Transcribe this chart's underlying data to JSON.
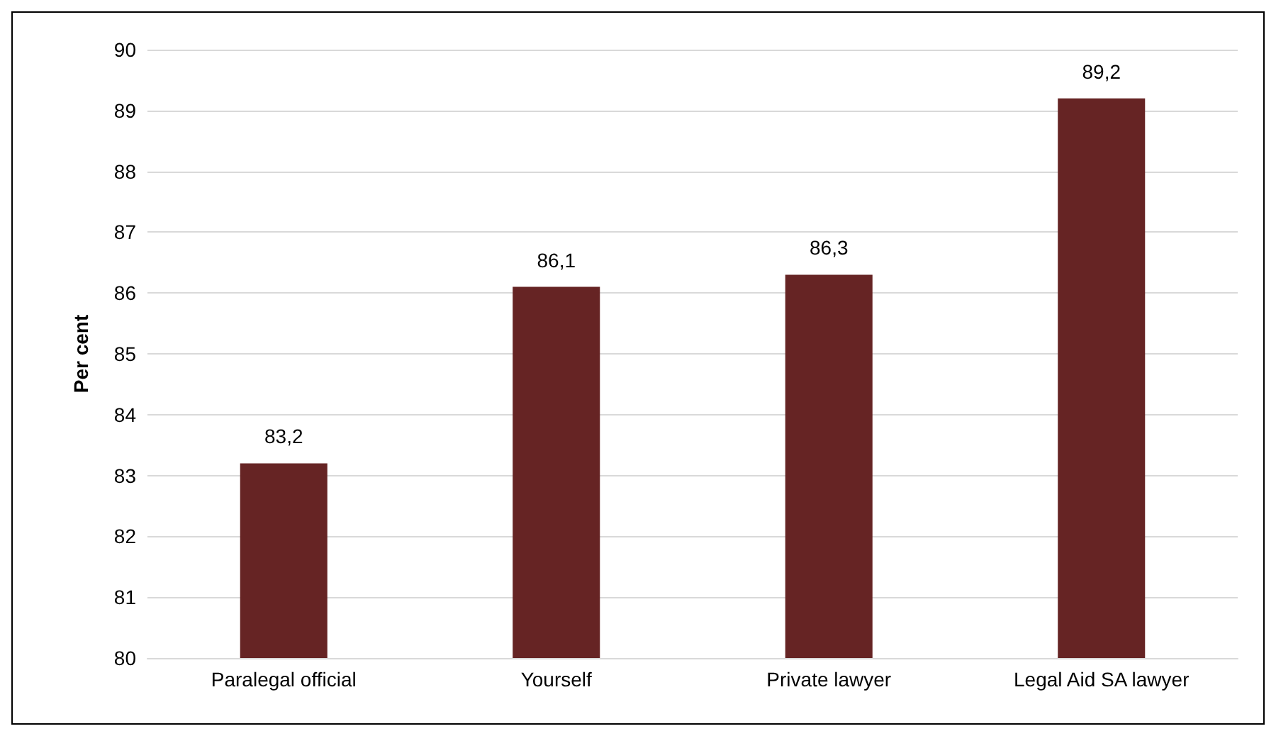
{
  "chart_data": {
    "type": "bar",
    "ylabel": "Per cent",
    "categories": [
      "Paralegal official",
      "Yourself",
      "Private lawyer",
      "Legal Aid SA lawyer"
    ],
    "values": [
      83.2,
      86.1,
      86.3,
      89.2
    ],
    "value_labels": [
      "83,2",
      "86,1",
      "86,3",
      "89,2"
    ],
    "color": "#662424",
    "ylim": [
      80,
      90
    ],
    "yticks": [
      80,
      81,
      82,
      83,
      84,
      85,
      86,
      87,
      88,
      89,
      90
    ],
    "grid": "y"
  }
}
